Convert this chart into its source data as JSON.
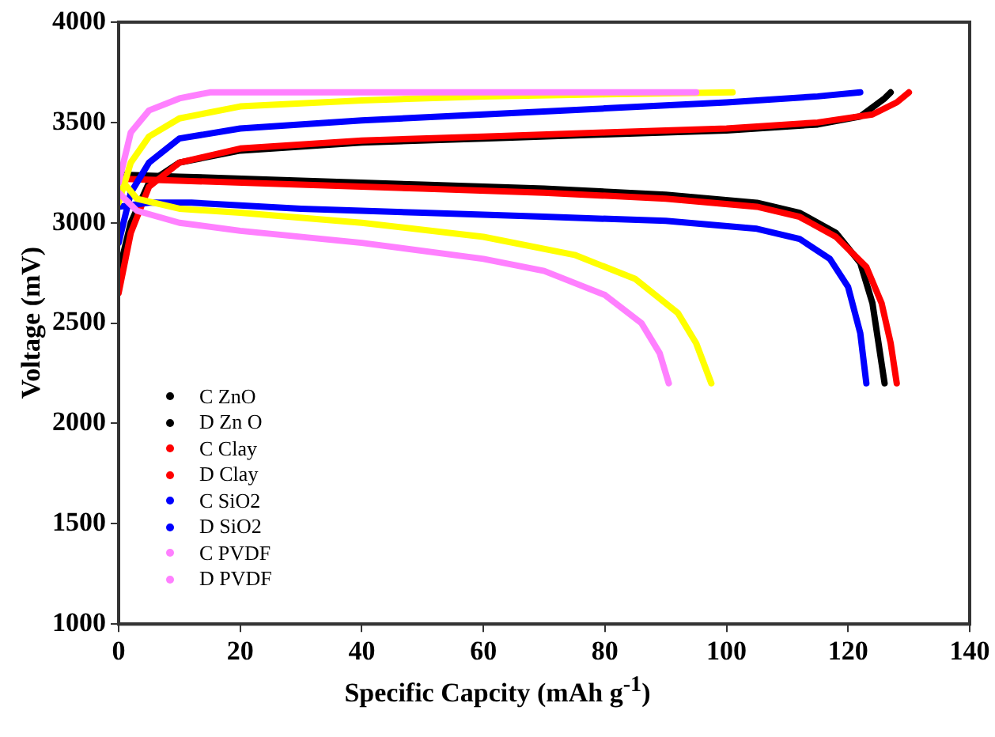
{
  "chart_data": {
    "type": "line",
    "xlabel": "Specific Capcity (mAh g$^{-1}$)",
    "ylabel": "Voltage (mV)",
    "xlim": [
      0,
      140
    ],
    "xticks": [
      0,
      20,
      40,
      60,
      80,
      100,
      120,
      140
    ],
    "ylim": [
      1000,
      4000
    ],
    "yticks": [
      1000,
      1500,
      2000,
      2500,
      3000,
      3500,
      4000
    ],
    "grid": false,
    "legend": "bottom left",
    "marker": "none",
    "line_style": "solid",
    "series": [
      {
        "name": "C ZnO",
        "color": "#000000",
        "x": [
          0,
          2,
          5,
          10,
          20,
          40,
          60,
          80,
          100,
          115,
          122,
          126,
          127
        ],
        "values": [
          2750,
          3000,
          3200,
          3300,
          3360,
          3400,
          3420,
          3440,
          3460,
          3490,
          3530,
          3620,
          3650
        ]
      },
      {
        "name": "D Zn O",
        "color": "#000000",
        "x": [
          0,
          10,
          30,
          50,
          70,
          90,
          105,
          112,
          118,
          122,
          124,
          125,
          126
        ],
        "values": [
          3240,
          3230,
          3210,
          3190,
          3170,
          3140,
          3100,
          3050,
          2950,
          2800,
          2600,
          2400,
          2200
        ]
      },
      {
        "name": "C Clay",
        "color": "#ff0000",
        "x": [
          0,
          2,
          5,
          10,
          20,
          40,
          60,
          80,
          100,
          115,
          124,
          128,
          130
        ],
        "values": [
          2650,
          2950,
          3180,
          3300,
          3370,
          3410,
          3430,
          3450,
          3470,
          3500,
          3540,
          3600,
          3650
        ]
      },
      {
        "name": "D Clay",
        "color": "#ff0000",
        "x": [
          0,
          10,
          30,
          50,
          70,
          90,
          105,
          112,
          118,
          123,
          125.5,
          127,
          128
        ],
        "values": [
          3220,
          3210,
          3190,
          3170,
          3150,
          3120,
          3080,
          3030,
          2930,
          2780,
          2600,
          2400,
          2200
        ]
      },
      {
        "name": "C SiO2",
        "color": "#0000ff",
        "x": [
          0,
          2,
          5,
          10,
          20,
          40,
          60,
          80,
          100,
          115,
          122
        ],
        "values": [
          2900,
          3150,
          3300,
          3420,
          3470,
          3510,
          3540,
          3570,
          3600,
          3630,
          3650
        ]
      },
      {
        "name": "D SiO2",
        "color": "#0000ff",
        "x": [
          0,
          5,
          12,
          30,
          50,
          70,
          90,
          105,
          112,
          117,
          120,
          122,
          123
        ],
        "values": [
          3080,
          3100,
          3100,
          3070,
          3050,
          3030,
          3010,
          2970,
          2920,
          2820,
          2680,
          2450,
          2200
        ]
      },
      {
        "color": "#ffff00",
        "x": [
          0,
          2,
          5,
          10,
          20,
          40,
          60,
          80,
          101
        ],
        "values": [
          3100,
          3300,
          3430,
          3520,
          3580,
          3610,
          3630,
          3640,
          3650
        ]
      },
      {
        "color": "#ffff00",
        "x": [
          0,
          3,
          10,
          20,
          40,
          60,
          75,
          85,
          92,
          95,
          97.5
        ],
        "values": [
          3230,
          3120,
          3070,
          3050,
          3000,
          2930,
          2840,
          2720,
          2550,
          2400,
          2200
        ]
      },
      {
        "name": "C PVDF",
        "color": "#ff80ff",
        "x": [
          0,
          2,
          5,
          10,
          15,
          40,
          60,
          95
        ],
        "values": [
          3200,
          3450,
          3560,
          3620,
          3650,
          3650,
          3650,
          3650
        ]
      },
      {
        "name": "D PVDF",
        "color": "#ff80ff",
        "x": [
          0,
          3,
          10,
          20,
          40,
          60,
          70,
          80,
          86,
          89,
          90.5
        ],
        "values": [
          3150,
          3060,
          3000,
          2960,
          2900,
          2820,
          2760,
          2640,
          2500,
          2350,
          2200
        ]
      }
    ]
  }
}
